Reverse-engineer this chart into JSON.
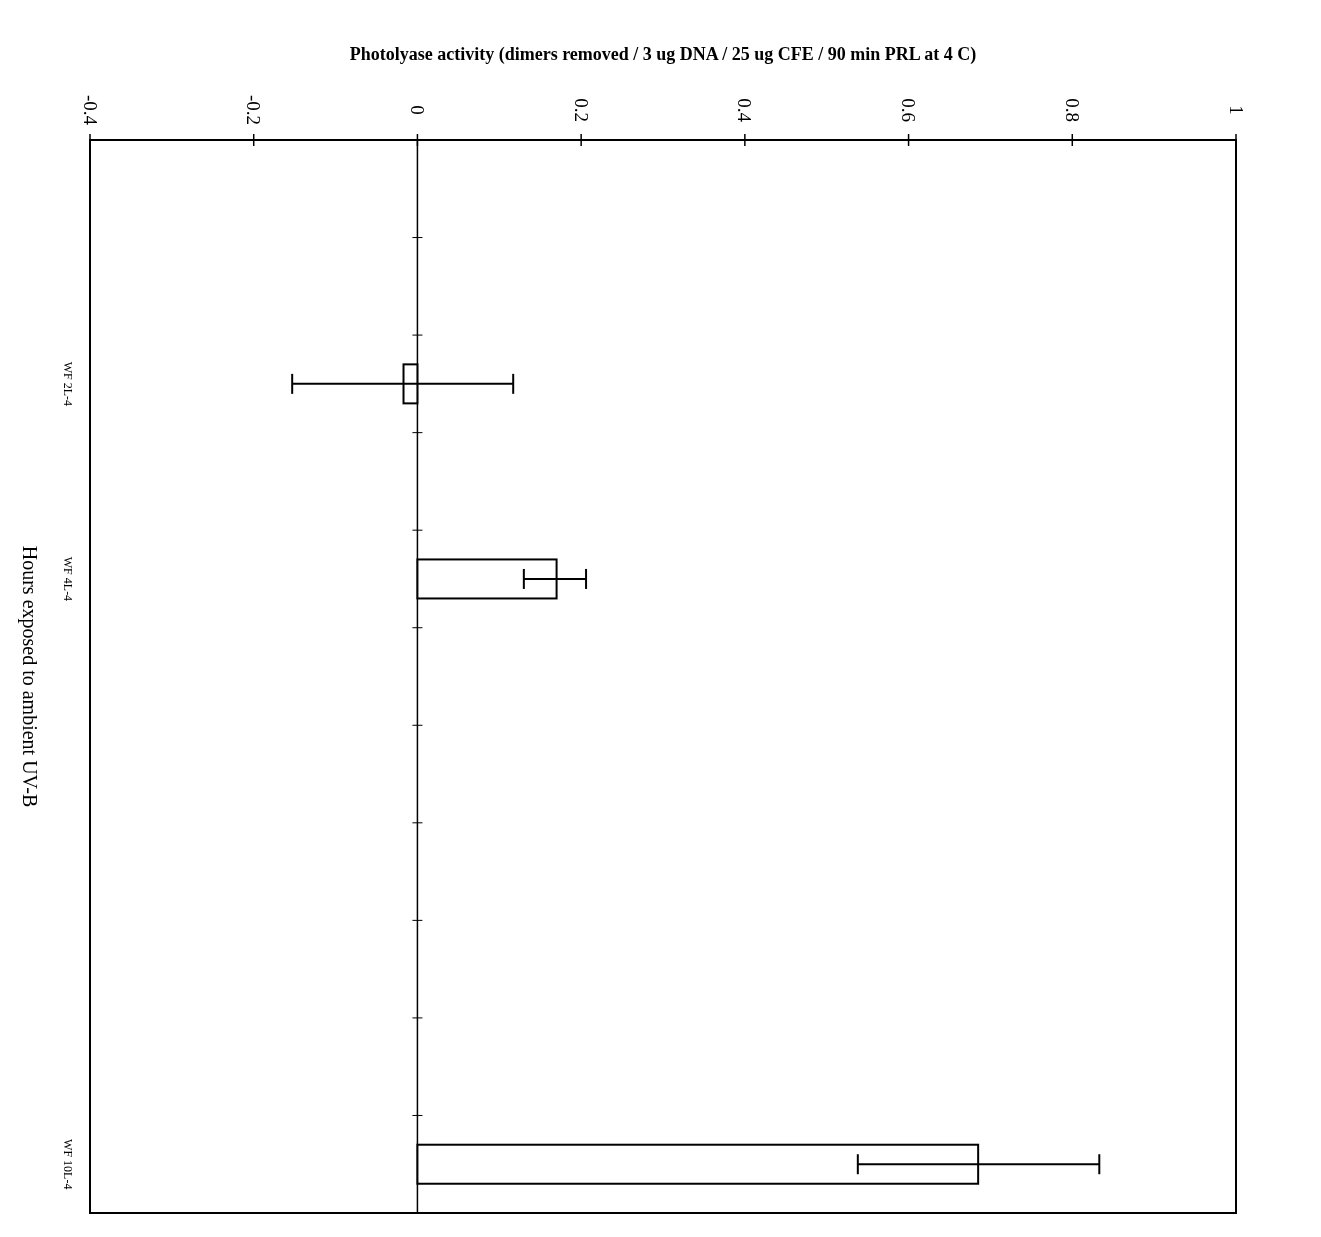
{
  "chart_data": {
    "type": "bar",
    "orientation": "horizontal",
    "xlabel": "Photolyase activity (dimers removed / 3 ug DNA / 25 ug CFE / 90 min PRL at 4 C)",
    "ylabel": "Hours exposed to ambient UV-B",
    "categories": [
      null,
      null,
      "WF 2L-4",
      null,
      "WF 4L-4",
      null,
      null,
      null,
      null,
      null,
      "WF 10L-4"
    ],
    "values": [
      null,
      null,
      -0.017,
      null,
      0.17,
      null,
      null,
      null,
      null,
      null,
      0.685
    ],
    "errors": [
      null,
      null,
      [
        -0.153,
        0.117
      ],
      null,
      [
        0.13,
        0.206
      ],
      null,
      null,
      null,
      null,
      null,
      [
        0.538,
        0.833
      ]
    ],
    "color": "#ffffff",
    "xlim": [
      -0.4,
      1
    ],
    "xticks": [
      -0.4,
      -0.2,
      0,
      0.2,
      0.4,
      0.6,
      0.8,
      1
    ]
  }
}
